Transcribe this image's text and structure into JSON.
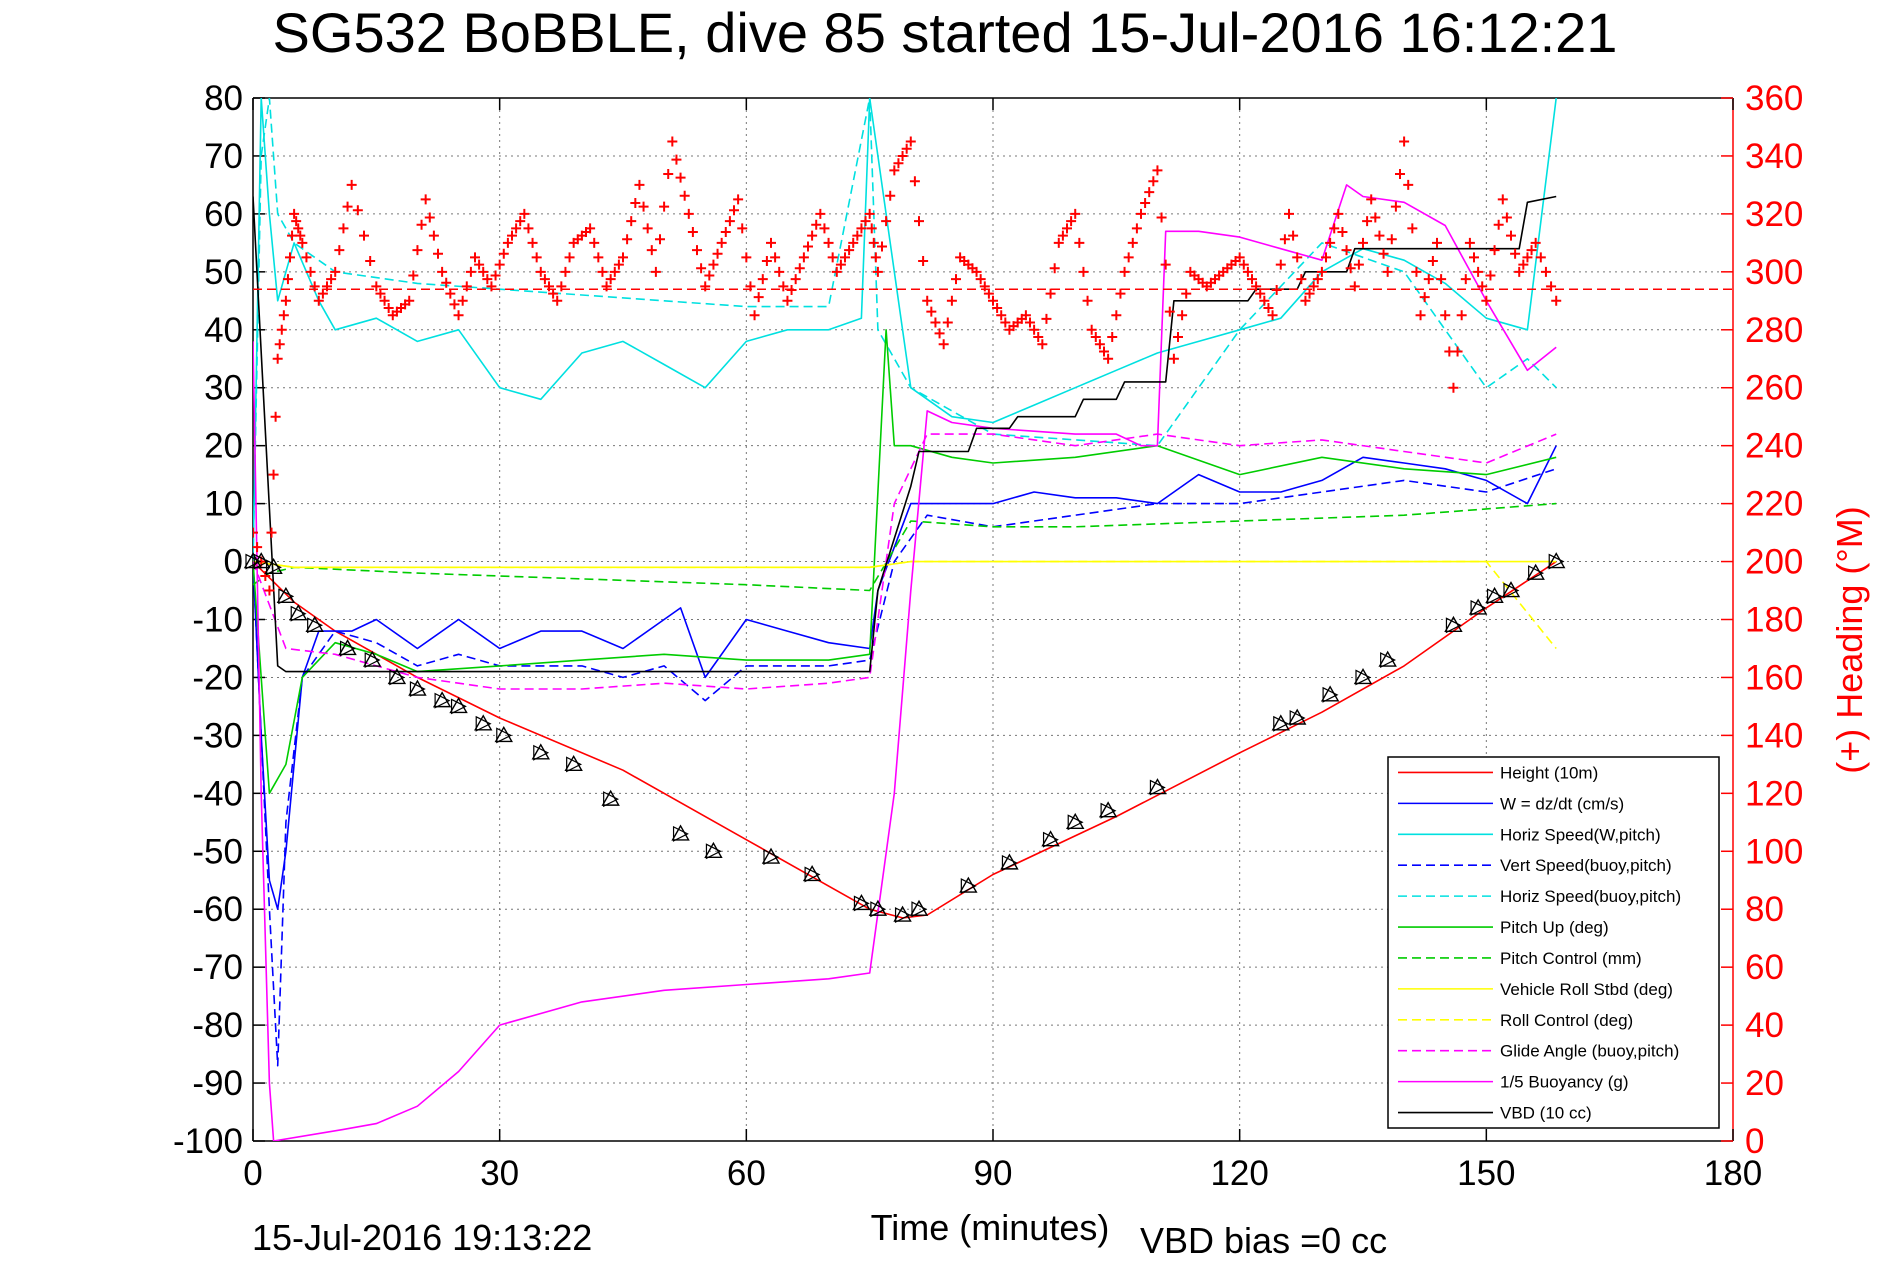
{
  "chart_data": {
    "type": "line",
    "title": "SG532 BoBBLE, dive 85 started 15-Jul-2016 16:12:21",
    "xlabel": "Time (minutes)",
    "ylabel_right": "(+) Heading (°M)",
    "footer_left": "15-Jul-2016 19:13:22",
    "footer_right": "VBD bias =0 cc",
    "xlim": [
      0,
      180
    ],
    "ylim_left": [
      -100,
      80
    ],
    "ylim_right": [
      0,
      360
    ],
    "x_ticks": [
      "0",
      "30",
      "60",
      "90",
      "120",
      "150",
      "180"
    ],
    "y_ticks_left": [
      "80",
      "70",
      "60",
      "50",
      "40",
      "30",
      "20",
      "10",
      "0",
      "-10",
      "-20",
      "-30",
      "-40",
      "-50",
      "-60",
      "-70",
      "-80",
      "-90",
      "-100"
    ],
    "y_ticks_right": [
      "360",
      "340",
      "320",
      "300",
      "280",
      "260",
      "240",
      "220",
      "200",
      "180",
      "160",
      "140",
      "120",
      "100",
      "80",
      "60",
      "40",
      "20",
      "0"
    ],
    "grid": true,
    "legend_position": "bottom-right",
    "series": [
      {
        "name": "Height (10m)",
        "color": "#ff0000",
        "dash": "solid",
        "x": [
          0,
          5,
          10,
          20,
          30,
          45,
          60,
          75,
          79,
          82,
          90,
          105,
          120,
          130,
          140,
          150,
          158.5
        ],
        "y": [
          0,
          -7,
          -12,
          -20,
          -27,
          -36,
          -48,
          -60,
          -61.5,
          -61,
          -54,
          -44,
          -33,
          -26,
          -18,
          -8,
          0
        ]
      },
      {
        "name": "W = dz/dt (cm/s)",
        "color": "#0000ff",
        "dash": "solid",
        "x": [
          0,
          1,
          2,
          3,
          4,
          6,
          8,
          10,
          12,
          15,
          20,
          25,
          30,
          35,
          40,
          45,
          50,
          52,
          55,
          60,
          65,
          70,
          75,
          76,
          80,
          85,
          90,
          95,
          100,
          105,
          110,
          115,
          120,
          125,
          130,
          135,
          140,
          145,
          150,
          155,
          158.5
        ],
        "y": [
          0,
          -30,
          -55,
          -60,
          -50,
          -20,
          -12,
          -12,
          -12,
          -10,
          -15,
          -10,
          -15,
          -12,
          -12,
          -15,
          -10,
          -8,
          -20,
          -10,
          -12,
          -14,
          -15,
          -5,
          10,
          10,
          10,
          12,
          11,
          11,
          10,
          15,
          12,
          12,
          14,
          18,
          17,
          16,
          14,
          10,
          20
        ]
      },
      {
        "name": "Horiz Speed(W,pitch)",
        "color": "#00e0e0",
        "dash": "solid",
        "x": [
          0,
          1,
          2,
          3,
          5,
          8,
          10,
          15,
          20,
          25,
          30,
          35,
          40,
          45,
          50,
          55,
          60,
          65,
          70,
          74,
          75,
          77,
          80,
          85,
          90,
          95,
          100,
          105,
          110,
          115,
          120,
          125,
          130,
          135,
          140,
          145,
          150,
          155,
          158.5
        ],
        "y": [
          0,
          80,
          60,
          45,
          55,
          45,
          40,
          42,
          38,
          40,
          30,
          28,
          36,
          38,
          34,
          30,
          38,
          40,
          40,
          42,
          80,
          60,
          30,
          25,
          24,
          27,
          30,
          33,
          36,
          38,
          40,
          42,
          50,
          54,
          52,
          48,
          42,
          40,
          80
        ]
      },
      {
        "name": "Vert Speed(buoy,pitch)",
        "color": "#0000ff",
        "dash": "dashed",
        "x": [
          0,
          2,
          3,
          4,
          6,
          10,
          15,
          20,
          25,
          30,
          40,
          45,
          50,
          55,
          60,
          70,
          75,
          78,
          82,
          90,
          95,
          100,
          110,
          120,
          130,
          140,
          150,
          158.5
        ],
        "y": [
          0,
          -60,
          -87,
          -45,
          -20,
          -12,
          -14,
          -18,
          -16,
          -18,
          -18,
          -20,
          -18,
          -24,
          -18,
          -18,
          -17,
          0,
          8,
          6,
          7,
          8,
          10,
          10,
          12,
          14,
          12,
          16
        ]
      },
      {
        "name": "Horiz Speed(buoy,pitch)",
        "color": "#00e0e0",
        "dash": "dashed",
        "x": [
          0,
          1,
          2,
          3,
          5,
          10,
          20,
          30,
          40,
          50,
          60,
          70,
          75,
          76,
          80,
          90,
          100,
          110,
          120,
          130,
          140,
          145,
          150,
          155,
          158.5
        ],
        "y": [
          0,
          70,
          80,
          60,
          55,
          50,
          48,
          47,
          46,
          45,
          44,
          44,
          80,
          40,
          30,
          22,
          21,
          20,
          40,
          55,
          50,
          40,
          30,
          35,
          30
        ]
      },
      {
        "name": "Pitch Up (deg)",
        "color": "#00cc00",
        "dash": "solid",
        "x": [
          0,
          2,
          4,
          6,
          10,
          15,
          20,
          30,
          40,
          50,
          60,
          70,
          75,
          77,
          78,
          80,
          85,
          90,
          100,
          110,
          120,
          130,
          140,
          150,
          158.5
        ],
        "y": [
          0,
          -40,
          -35,
          -20,
          -14,
          -16,
          -19,
          -18,
          -17,
          -16,
          -17,
          -17,
          -16,
          40,
          20,
          20,
          18,
          17,
          18,
          20,
          15,
          18,
          16,
          15,
          18
        ]
      },
      {
        "name": "Pitch Control (mm)",
        "color": "#00cc00",
        "dash": "dashed",
        "x": [
          0,
          2,
          5,
          20,
          40,
          60,
          75,
          80,
          90,
          100,
          120,
          140,
          158.5
        ],
        "y": [
          -4,
          -2,
          -1,
          -2,
          -3,
          -4,
          -5,
          7,
          6,
          6,
          7,
          8,
          10
        ]
      },
      {
        "name": "Vehicle Roll Stbd (deg)",
        "color": "#ffff00",
        "dash": "solid",
        "x": [
          0,
          5,
          10,
          20,
          30,
          40,
          50,
          60,
          70,
          75,
          80,
          90,
          100,
          110,
          120,
          130,
          140,
          150,
          158.5
        ],
        "y": [
          0,
          -1,
          -1,
          -1,
          -1,
          -1,
          -1,
          -1,
          -1,
          -1,
          0,
          0,
          0,
          0,
          0,
          0,
          0,
          0,
          0
        ]
      },
      {
        "name": "Roll Control (deg)",
        "color": "#ffff00",
        "dash": "dashed",
        "x": [
          0,
          5,
          20,
          40,
          60,
          75,
          80,
          100,
          120,
          140,
          150,
          158.5
        ],
        "y": [
          0,
          -1,
          -1,
          -1,
          -1,
          -1,
          0,
          0,
          0,
          0,
          0,
          -15
        ]
      },
      {
        "name": "Glide Angle (buoy,pitch)",
        "color": "#ff00ff",
        "dash": "dashed",
        "x": [
          0,
          4,
          10,
          20,
          30,
          40,
          50,
          60,
          70,
          75,
          78,
          82,
          90,
          100,
          110,
          120,
          130,
          140,
          150,
          158.5
        ],
        "y": [
          0,
          -15,
          -16,
          -20,
          -22,
          -22,
          -21,
          -22,
          -21,
          -20,
          10,
          22,
          22,
          20,
          22,
          20,
          21,
          19,
          17,
          22
        ]
      },
      {
        "name": "1/5 Buoyancy (g)",
        "color": "#ff00ff",
        "dash": "solid",
        "x": [
          0,
          1,
          2,
          2.5,
          11,
          15,
          20,
          25,
          30,
          40,
          50,
          60,
          70,
          75,
          78,
          80,
          82,
          85,
          90,
          100,
          105,
          108,
          110,
          111,
          115,
          120,
          125,
          130,
          133,
          135,
          140,
          145,
          150,
          155,
          158.5
        ],
        "y": [
          38,
          -40,
          -90,
          -100,
          -98,
          -97,
          -94,
          -88,
          -80,
          -76,
          -74,
          -73,
          -72,
          -71,
          -40,
          -5,
          26,
          24,
          23,
          22,
          22,
          20,
          20,
          57,
          57,
          56,
          54,
          52,
          65,
          63,
          62,
          58,
          45,
          33,
          37
        ]
      },
      {
        "name": "VBD (10 cc)",
        "color": "#000000",
        "dash": "solid",
        "x": [
          0,
          3,
          4,
          75,
          76,
          80,
          81,
          87,
          88,
          92,
          93,
          100,
          101,
          105,
          106,
          111,
          112,
          121,
          122,
          127,
          128,
          133,
          134,
          154,
          155,
          158.5
        ],
        "y": [
          63,
          -18,
          -19,
          -19,
          -5,
          13,
          19,
          19,
          23,
          23,
          25,
          25,
          28,
          28,
          31,
          31,
          45,
          45,
          47,
          47,
          50,
          50,
          54,
          54,
          62,
          63
        ]
      }
    ],
    "heading_series": {
      "name": "(+) Heading (°M)",
      "color": "#ff0000",
      "marker": "+",
      "x": [
        0,
        2,
        3,
        4,
        5,
        6,
        8,
        10,
        12,
        15,
        17,
        19,
        21,
        23,
        25,
        27,
        29,
        31,
        33,
        35,
        37,
        39,
        41,
        43,
        45,
        47,
        49,
        51,
        53,
        55,
        57,
        59,
        61,
        63,
        65,
        67,
        69,
        71,
        73,
        75,
        76,
        78,
        80,
        82,
        84,
        86,
        88,
        90,
        92,
        94,
        96,
        98,
        100,
        102,
        104,
        106,
        108,
        110,
        112,
        114,
        116,
        118,
        120,
        122,
        124,
        126,
        128,
        130,
        132,
        134,
        136,
        138,
        140,
        142,
        144,
        146,
        148,
        150,
        152,
        154,
        156,
        158.5
      ],
      "y": [
        210,
        190,
        270,
        290,
        320,
        310,
        290,
        300,
        330,
        295,
        285,
        290,
        325,
        300,
        285,
        305,
        295,
        310,
        320,
        300,
        290,
        310,
        315,
        295,
        305,
        330,
        300,
        345,
        320,
        295,
        310,
        325,
        285,
        310,
        290,
        305,
        320,
        300,
        310,
        320,
        300,
        335,
        345,
        290,
        275,
        305,
        300,
        290,
        280,
        285,
        275,
        310,
        320,
        280,
        270,
        300,
        320,
        335,
        270,
        300,
        295,
        300,
        305,
        295,
        285,
        320,
        290,
        300,
        320,
        295,
        325,
        300,
        345,
        285,
        310,
        260,
        310,
        290,
        325,
        300,
        310,
        290
      ]
    },
    "heading_mean": 294,
    "depth_markers": [
      {
        "x": 0,
        "y": 0
      },
      {
        "x": 1,
        "y": 0
      },
      {
        "x": 2.5,
        "y": -1
      },
      {
        "x": 4,
        "y": -6
      },
      {
        "x": 5.5,
        "y": -9
      },
      {
        "x": 7.5,
        "y": -11
      },
      {
        "x": 11.5,
        "y": -15
      },
      {
        "x": 14.5,
        "y": -17
      },
      {
        "x": 17.5,
        "y": -20
      },
      {
        "x": 20,
        "y": -22
      },
      {
        "x": 23,
        "y": -24
      },
      {
        "x": 25,
        "y": -25
      },
      {
        "x": 28,
        "y": -28
      },
      {
        "x": 30.5,
        "y": -30
      },
      {
        "x": 35,
        "y": -33
      },
      {
        "x": 39,
        "y": -35
      },
      {
        "x": 43.5,
        "y": -41
      },
      {
        "x": 52,
        "y": -47
      },
      {
        "x": 56,
        "y": -50
      },
      {
        "x": 63,
        "y": -51
      },
      {
        "x": 68,
        "y": -54
      },
      {
        "x": 74,
        "y": -59
      },
      {
        "x": 76,
        "y": -60
      },
      {
        "x": 79,
        "y": -61
      },
      {
        "x": 81,
        "y": -60
      },
      {
        "x": 87,
        "y": -56
      },
      {
        "x": 92,
        "y": -52
      },
      {
        "x": 97,
        "y": -48
      },
      {
        "x": 100,
        "y": -45
      },
      {
        "x": 104,
        "y": -43
      },
      {
        "x": 110,
        "y": -39
      },
      {
        "x": 125,
        "y": -28
      },
      {
        "x": 127,
        "y": -27
      },
      {
        "x": 131,
        "y": -23
      },
      {
        "x": 135,
        "y": -20
      },
      {
        "x": 138,
        "y": -17
      },
      {
        "x": 146,
        "y": -11
      },
      {
        "x": 149,
        "y": -8
      },
      {
        "x": 151,
        "y": -6
      },
      {
        "x": 153,
        "y": -5
      },
      {
        "x": 156,
        "y": -2
      },
      {
        "x": 158.5,
        "y": 0
      }
    ]
  }
}
